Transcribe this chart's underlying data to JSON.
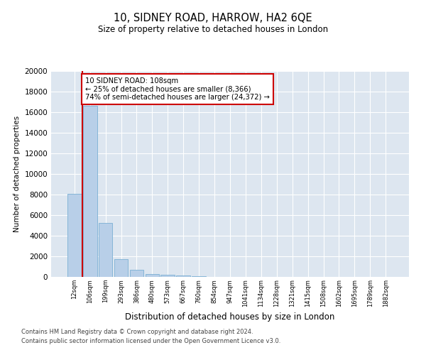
{
  "title1": "10, SIDNEY ROAD, HARROW, HA2 6QE",
  "title2": "Size of property relative to detached houses in London",
  "xlabel": "Distribution of detached houses by size in London",
  "ylabel": "Number of detached properties",
  "bar_labels": [
    "12sqm",
    "106sqm",
    "199sqm",
    "293sqm",
    "386sqm",
    "480sqm",
    "573sqm",
    "667sqm",
    "760sqm",
    "854sqm",
    "947sqm",
    "1041sqm",
    "1134sqm",
    "1228sqm",
    "1321sqm",
    "1415sqm",
    "1508sqm",
    "1602sqm",
    "1695sqm",
    "1789sqm",
    "1882sqm"
  ],
  "bar_values": [
    8100,
    16600,
    5250,
    1750,
    700,
    300,
    175,
    120,
    60,
    0,
    0,
    0,
    0,
    0,
    0,
    0,
    0,
    0,
    0,
    0,
    0
  ],
  "bar_color": "#b8cfe8",
  "bar_edge_color": "#7aafd4",
  "bg_color": "#dde6f0",
  "grid_color": "#ffffff",
  "vline_x": 1.0,
  "vline_color": "#cc0000",
  "annotation_title": "10 SIDNEY ROAD: 108sqm",
  "annotation_line1": "← 25% of detached houses are smaller (8,366)",
  "annotation_line2": "74% of semi-detached houses are larger (24,372) →",
  "annotation_box_facecolor": "#ffffff",
  "annotation_border_color": "#cc0000",
  "ylim": [
    0,
    20000
  ],
  "yticks": [
    0,
    2000,
    4000,
    6000,
    8000,
    10000,
    12000,
    14000,
    16000,
    18000,
    20000
  ],
  "fig_bg": "#ffffff",
  "footer1": "Contains HM Land Registry data © Crown copyright and database right 2024.",
  "footer2": "Contains public sector information licensed under the Open Government Licence v3.0."
}
